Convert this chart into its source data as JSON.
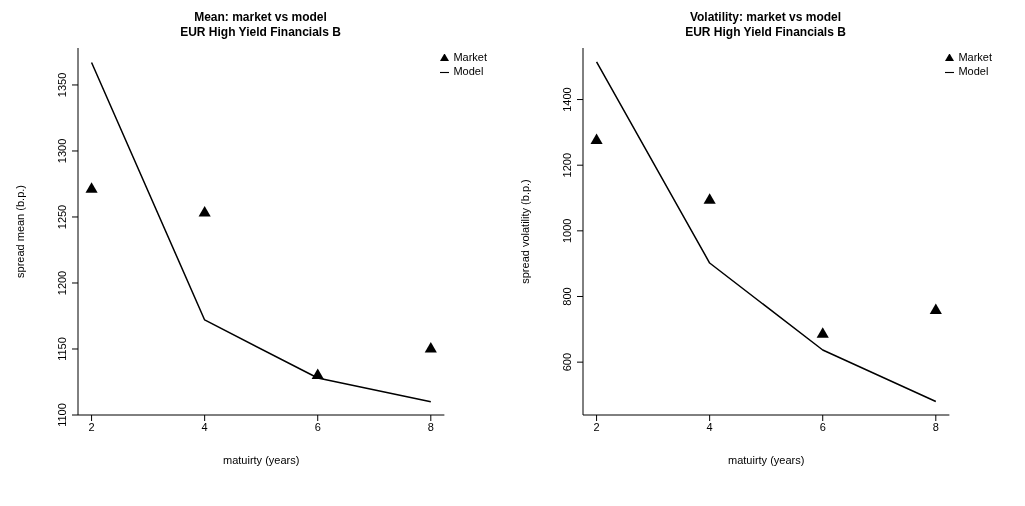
{
  "chart_data": [
    {
      "type": "line",
      "title": "Mean: market vs model",
      "subtitle": "EUR High Yield Financials B",
      "xlabel": "matuirty (years)",
      "ylabel": "spread mean (b.p.)",
      "x": [
        2,
        4,
        6,
        8
      ],
      "xlim": [
        1.76,
        8.24
      ],
      "xticks": [
        2,
        4,
        6,
        8
      ],
      "ylim": [
        1100,
        1378
      ],
      "yticks": [
        1100,
        1150,
        1200,
        1250,
        1300,
        1350
      ],
      "legend": "top right",
      "grid": false,
      "series": [
        {
          "name": "Market",
          "type": "scatter",
          "marker": "triangle",
          "color": "#000000",
          "values": [
            1271,
            1253,
            1130,
            1150
          ]
        },
        {
          "name": "Model",
          "line_style": "solid",
          "color": "#000000",
          "values": [
            1367,
            1172,
            1128,
            1110
          ]
        }
      ]
    },
    {
      "type": "line",
      "title": "Volatility: market vs model",
      "subtitle": "EUR High Yield Financials B",
      "xlabel": "matuirty (years)",
      "ylabel": "spread volatility (b.p.)",
      "x": [
        2,
        4,
        6,
        8
      ],
      "xlim": [
        1.76,
        8.24
      ],
      "xticks": [
        2,
        4,
        6,
        8
      ],
      "ylim": [
        439,
        1557
      ],
      "yticks": [
        600,
        800,
        1000,
        1200,
        1400
      ],
      "legend": "top right",
      "grid": false,
      "series": [
        {
          "name": "Market",
          "type": "scatter",
          "marker": "triangle",
          "color": "#000000",
          "values": [
            1275,
            1093,
            685,
            757
          ]
        },
        {
          "name": "Model",
          "line_style": "solid",
          "color": "#000000",
          "values": [
            1515,
            902,
            637,
            480
          ]
        }
      ]
    }
  ]
}
